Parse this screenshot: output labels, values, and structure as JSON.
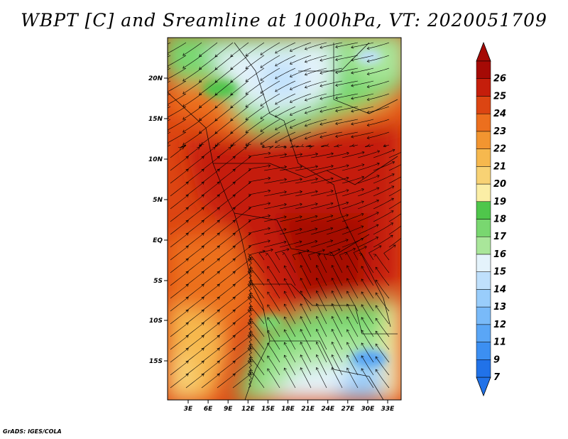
{
  "map": {
    "title": "WBPT [C] and Sreamline at 1000hPa, VT: 2020051709",
    "credit": "GrADS: IGES/COLA",
    "lat_ticks": [
      "20N",
      "15N",
      "10N",
      "5N",
      "EQ",
      "5S",
      "10S",
      "15S"
    ],
    "lon_ticks": [
      "3E",
      "6E",
      "9E",
      "12E",
      "15E",
      "18E",
      "21E",
      "24E",
      "27E",
      "30E",
      "33E"
    ]
  },
  "chart_data": {
    "type": "heatmap",
    "variable": "Wet-bulb potential temperature (C) with streamlines at 1000hPa",
    "valid_time": "2020051709",
    "lon_range": [
      0,
      35
    ],
    "lat_range": [
      -20,
      24
    ],
    "regions": [
      {
        "area": "Sahara (north-center)",
        "wbpt_approx": 14
      },
      {
        "area": "Sahel band 10N-16N",
        "wbpt_approx": 24
      },
      {
        "area": "Gulf of Guinea / Congo basin",
        "wbpt_approx": 25
      },
      {
        "area": "Southern Africa plateau (south-east)",
        "wbpt_approx": 14
      },
      {
        "area": "South Atlantic (south-west)",
        "wbpt_approx": 21
      }
    ],
    "colorbar": {
      "levels": [
        7,
        9,
        11,
        12,
        13,
        14,
        15,
        16,
        17,
        18,
        19,
        20,
        21,
        22,
        23,
        24,
        25,
        26
      ],
      "colors": [
        "#2172e8",
        "#3c8ff2",
        "#5aa6f6",
        "#79baf9",
        "#99cdfb",
        "#bfe0fc",
        "#e4f3fb",
        "#a9e69a",
        "#79d770",
        "#4fc64b",
        "#fbeea6",
        "#f8d274",
        "#f6b84e",
        "#f29530",
        "#ec6f1e",
        "#dc4512",
        "#c51e0b",
        "#a50a05"
      ]
    }
  }
}
